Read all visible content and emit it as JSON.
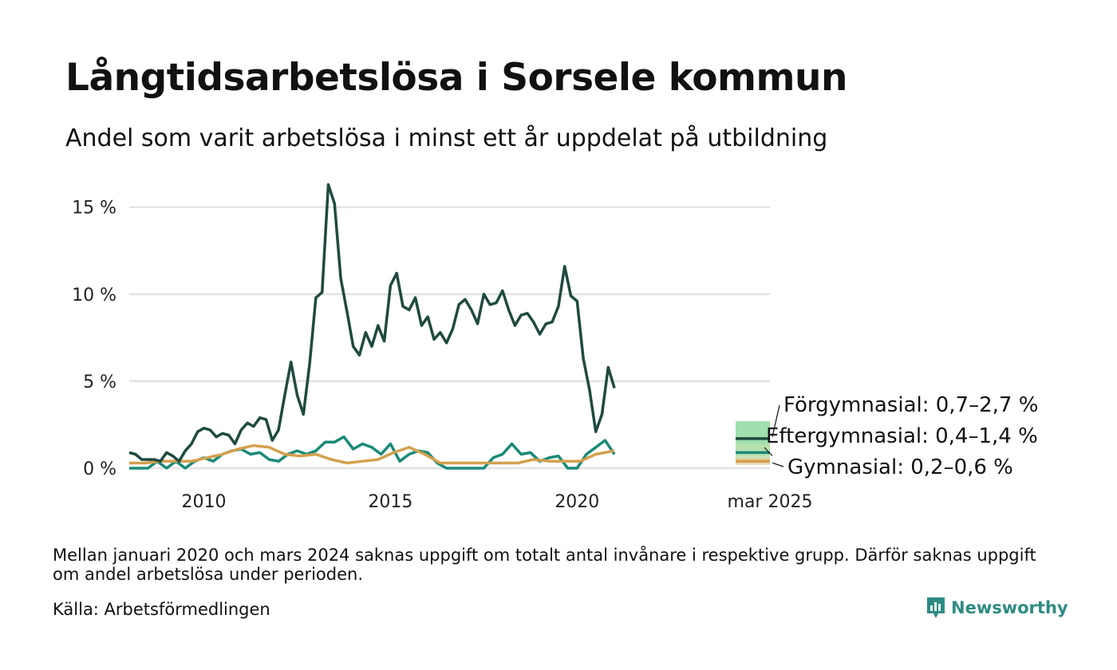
{
  "title": "Långtidsarbetslösa i Sorsele kommun",
  "subtitle": "Andel som varit arbetslösa i minst ett år uppdelat på utbildning",
  "note": "Mellan januari 2020 och mars 2024 saknas uppgift om totalt antal invånare i respektive grupp. Därför saknas uppgift om andel arbetslösa under perioden.",
  "source": "Källa: Arbetsförmedlingen",
  "brand": "Newsworthy",
  "chart_data": {
    "type": "line",
    "title": "Långtidsarbetslösa i Sorsele kommun",
    "subtitle": "Andel som varit arbetslösa i minst ett år uppdelat på utbildning",
    "x_tick_labels": [
      "2010",
      "2015",
      "2020",
      "mar 2025"
    ],
    "y_tick_labels": [
      "0 %",
      "5 %",
      "10 %",
      "15 %"
    ],
    "y_ticks": [
      0,
      5,
      10,
      15
    ],
    "ylim": [
      0,
      16.5
    ],
    "x_range": [
      "2008-01",
      "2025-03"
    ],
    "grid": "horizontal",
    "series": [
      {
        "name": "Förgymnasial",
        "color": "#1f4a3f",
        "x": [
          "2008-01",
          "2008-03",
          "2008-05",
          "2008-07",
          "2008-09",
          "2008-11",
          "2009-01",
          "2009-03",
          "2009-05",
          "2009-07",
          "2009-09",
          "2009-11",
          "2010-01",
          "2010-03",
          "2010-05",
          "2010-07",
          "2010-09",
          "2010-11",
          "2011-01",
          "2011-03",
          "2011-05",
          "2011-07",
          "2011-09",
          "2011-11",
          "2012-01",
          "2012-03",
          "2012-05",
          "2012-07",
          "2012-09",
          "2012-11",
          "2013-01",
          "2013-03",
          "2013-05",
          "2013-07",
          "2013-09",
          "2013-11",
          "2014-01",
          "2014-03",
          "2014-05",
          "2014-07",
          "2014-09",
          "2014-11",
          "2015-01",
          "2015-03",
          "2015-05",
          "2015-07",
          "2015-09",
          "2015-11",
          "2016-01",
          "2016-03",
          "2016-05",
          "2016-07",
          "2016-09",
          "2016-11",
          "2017-01",
          "2017-03",
          "2017-05",
          "2017-07",
          "2017-09",
          "2017-11",
          "2018-01",
          "2018-03",
          "2018-05",
          "2018-07",
          "2018-09",
          "2018-11",
          "2019-01",
          "2019-03",
          "2019-05",
          "2019-07",
          "2019-09",
          "2019-11",
          "2020-01",
          "2020-03",
          "2020-05",
          "2020-07",
          "2020-09",
          "2020-11",
          "2021-01"
        ],
        "values": [
          0.9,
          0.8,
          0.5,
          0.5,
          0.5,
          0.4,
          0.9,
          0.7,
          0.4,
          1.0,
          1.4,
          2.1,
          2.3,
          2.2,
          1.8,
          2.0,
          1.9,
          1.4,
          2.2,
          2.6,
          2.4,
          2.9,
          2.8,
          1.6,
          2.2,
          4.2,
          6.1,
          4.2,
          3.1,
          6.0,
          9.8,
          10.1,
          16.3,
          15.2,
          10.9,
          9.0,
          7.0,
          6.5,
          7.8,
          7.0,
          8.2,
          7.3,
          10.5,
          11.2,
          9.3,
          9.1,
          9.8,
          8.2,
          8.7,
          7.4,
          7.8,
          7.2,
          8.0,
          9.4,
          9.7,
          9.1,
          8.3,
          10.0,
          9.4,
          9.5,
          10.2,
          9.1,
          8.2,
          8.8,
          8.9,
          8.4,
          7.7,
          8.3,
          8.4,
          9.3,
          11.6,
          9.9,
          9.6,
          6.3,
          4.5,
          2.1,
          3.1,
          5.8,
          4.6
        ]
      },
      {
        "name": "Eftergymnasial",
        "color": "#1a8a78",
        "x": [
          "2008-01",
          "2008-07",
          "2008-10",
          "2009-01",
          "2009-04",
          "2009-07",
          "2009-10",
          "2010-01",
          "2010-04",
          "2010-07",
          "2010-10",
          "2011-01",
          "2011-04",
          "2011-07",
          "2011-10",
          "2012-01",
          "2012-04",
          "2012-07",
          "2012-10",
          "2013-01",
          "2013-04",
          "2013-07",
          "2013-10",
          "2014-01",
          "2014-04",
          "2014-07",
          "2014-10",
          "2015-01",
          "2015-04",
          "2015-07",
          "2015-10",
          "2016-01",
          "2016-04",
          "2016-07",
          "2016-10",
          "2017-01",
          "2017-04",
          "2017-07",
          "2017-10",
          "2018-01",
          "2018-04",
          "2018-07",
          "2018-10",
          "2019-01",
          "2019-04",
          "2019-07",
          "2019-10",
          "2020-01",
          "2020-04",
          "2020-07",
          "2020-10",
          "2021-01"
        ],
        "values": [
          0.0,
          0.0,
          0.4,
          0.0,
          0.4,
          0.0,
          0.4,
          0.6,
          0.4,
          0.8,
          1.0,
          1.1,
          0.8,
          0.9,
          0.5,
          0.4,
          0.8,
          1.0,
          0.8,
          1.0,
          1.5,
          1.5,
          1.8,
          1.1,
          1.4,
          1.2,
          0.8,
          1.4,
          0.4,
          0.8,
          1.0,
          0.9,
          0.3,
          0.0,
          0.0,
          0.0,
          0.0,
          0.0,
          0.6,
          0.8,
          1.4,
          0.8,
          0.9,
          0.4,
          0.6,
          0.7,
          0.0,
          0.0,
          0.8,
          1.2,
          1.6,
          0.8
        ]
      },
      {
        "name": "Gymnasial",
        "color": "#d4a04e",
        "x": [
          "2008-01",
          "2008-06",
          "2008-11",
          "2009-04",
          "2009-09",
          "2010-02",
          "2010-07",
          "2010-12",
          "2011-05",
          "2011-10",
          "2012-03",
          "2012-08",
          "2013-01",
          "2013-06",
          "2013-11",
          "2014-04",
          "2014-09",
          "2015-02",
          "2015-07",
          "2015-12",
          "2016-05",
          "2016-10",
          "2017-03",
          "2017-08",
          "2018-01",
          "2018-06",
          "2018-11",
          "2019-04",
          "2019-09",
          "2020-02",
          "2020-07",
          "2021-01"
        ],
        "values": [
          0.3,
          0.3,
          0.4,
          0.4,
          0.4,
          0.6,
          0.8,
          1.1,
          1.3,
          1.2,
          0.8,
          0.7,
          0.8,
          0.5,
          0.3,
          0.4,
          0.5,
          0.9,
          1.2,
          0.8,
          0.3,
          0.3,
          0.3,
          0.3,
          0.3,
          0.3,
          0.5,
          0.4,
          0.4,
          0.4,
          0.8,
          1.0
        ]
      }
    ],
    "latest": [
      {
        "name": "Förgymnasial",
        "label": "Förgymnasial: 0,7–2,7 %",
        "low": 0.7,
        "high": 2.7,
        "mid": 1.7,
        "color": "#1f4a3f",
        "band_color": "#8fd9a0"
      },
      {
        "name": "Eftergymnasial",
        "label": "Eftergymnasial: 0,4–1,4 %",
        "low": 0.4,
        "high": 1.4,
        "mid": 0.9,
        "color": "#1a8a78",
        "band_color": "#bde2b0"
      },
      {
        "name": "Gymnasial",
        "label": "Gymnasial: 0,2–0,6 %",
        "low": 0.2,
        "high": 0.6,
        "mid": 0.4,
        "color": "#d4a04e",
        "band_color": "#e3cf9c"
      }
    ]
  }
}
